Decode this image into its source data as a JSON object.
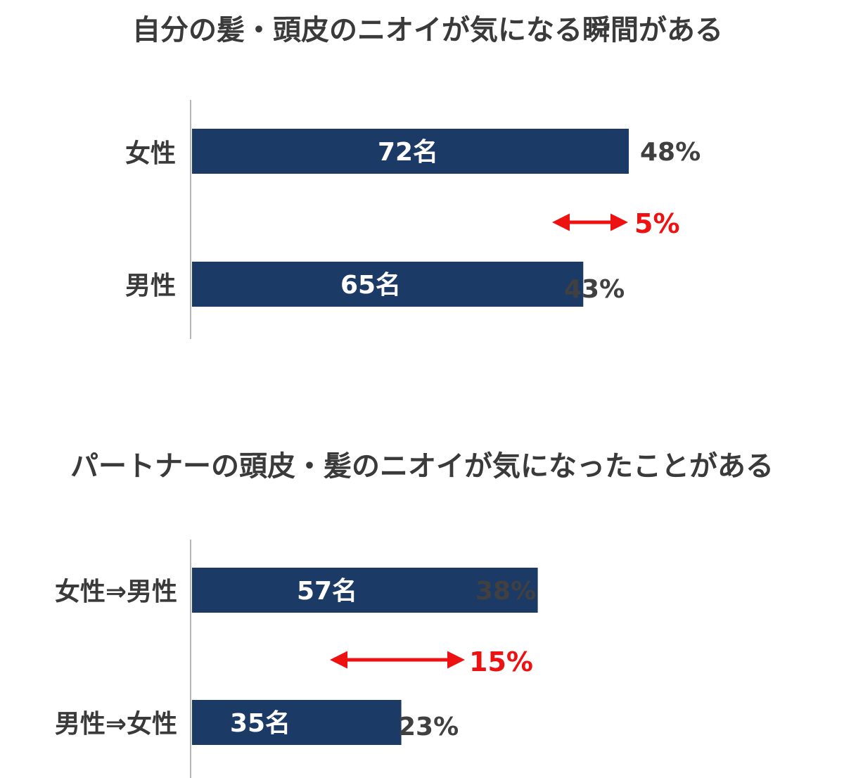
{
  "colors": {
    "bar": "#1c3a66",
    "axis": "#b8b8b8",
    "diff": "#ee1111",
    "title": "#3a3a3a",
    "text": "#404040"
  },
  "chart_data": [
    {
      "type": "bar",
      "orientation": "horizontal",
      "title": "自分の髪・頭皮のニオイが気になる瞬間がある",
      "categories": [
        "女性",
        "男性"
      ],
      "values": [
        48,
        43
      ],
      "bar_labels": [
        "72名",
        "65名"
      ],
      "value_labels": [
        "48%",
        "43%"
      ],
      "difference": {
        "value": 5,
        "label": "5%"
      }
    },
    {
      "type": "bar",
      "orientation": "horizontal",
      "title": "パートナーの頭皮・髪のニオイが気になったことがある",
      "categories": [
        "女性⇒男性",
        "男性⇒女性"
      ],
      "values": [
        38,
        23
      ],
      "bar_labels": [
        "57名",
        "35名"
      ],
      "value_labels": [
        "38%",
        "23%"
      ],
      "difference": {
        "value": 15,
        "label": "15%"
      }
    }
  ]
}
